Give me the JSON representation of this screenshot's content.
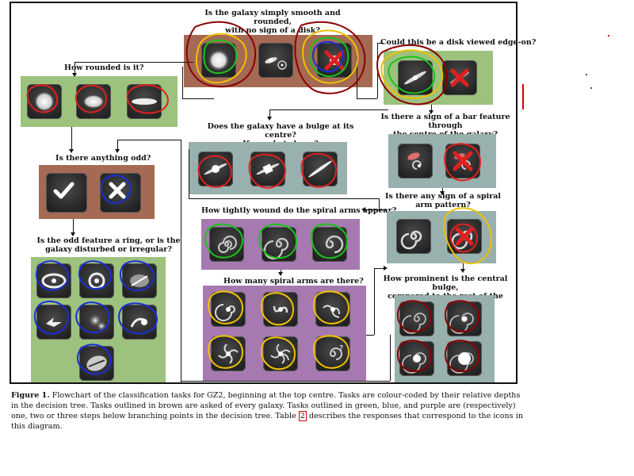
{
  "questions": {
    "smooth": "Is the galaxy simply smooth and rounded,\nwith no sign of a disk?",
    "edge_on": "Could this be a disk viewed edge-on?",
    "rounded": "How rounded is it?",
    "bulge_shape": "Does the galaxy have a bulge at its centre?\nIf so, what shape?",
    "bar": "Is there a sign of a bar feature through\nthe centre of the galaxy?",
    "odd": "Is there anything odd?",
    "spiral": "Is there any sign of a spiral\narm pattern?",
    "wound": "How tightly wound do the spiral arms appear?",
    "odd_feature": "Is the odd feature a ring, or is the\ngalaxy disturbed or irregular?",
    "arms": "How many spiral arms are there?",
    "bulge_prominence": "How prominent is the central bulge,\ncompared to the rest of the galaxy?"
  },
  "caption": {
    "label": "Figure 1.",
    "text_before_ref": " Flowchart of the classification tasks for GZ2, beginning at the top centre. Tasks are colour-coded by their relative depths in the decision tree. Tasks outlined in brown are asked of every galaxy. Tasks outlined in green, blue, and purple are (respectively) one, two or three steps below branching points in the decision tree. Table ",
    "ref": "2",
    "text_after_ref": " describes the responses that correspond to the icons in this diagram."
  },
  "colors": {
    "depth_0_brown": "#a46a54",
    "depth_1_green": "#9cc27e",
    "depth_2_blue": "#98b0ae",
    "depth_3_purple": "#a67ab0",
    "annotation_red": "#c00000",
    "annotation_green": "#19c319",
    "annotation_blue": "#1a2fd6",
    "annotation_yellow": "#f0c000",
    "annotation_darkred": "#8b0000"
  },
  "icons": {
    "smooth": [
      "smooth-galaxy-icon",
      "features-disk-icon",
      "star-artifact-icon"
    ],
    "edge_on": [
      "edge-on-yes-icon",
      "edge-on-no-icon"
    ],
    "rounded": [
      "completely-round-icon",
      "in-between-icon",
      "cigar-shaped-icon"
    ],
    "bulge_shape": [
      "rounded-bulge-icon",
      "boxy-bulge-icon",
      "no-bulge-icon"
    ],
    "bar": [
      "bar-icon",
      "no-bar-icon"
    ],
    "odd": [
      "yes-check-icon",
      "no-cross-icon"
    ],
    "spiral": [
      "spiral-icon",
      "no-spiral-icon"
    ],
    "wound": [
      "tight-spiral-icon",
      "medium-spiral-icon",
      "loose-spiral-icon"
    ],
    "odd_feature": [
      "ring-icon",
      "lens-icon",
      "disturbed-icon",
      "irregular-icon",
      "other-icon",
      "merger-icon",
      "dust-lane-icon"
    ],
    "arms": [
      "one-arm-icon",
      "two-arms-icon",
      "three-arms-icon",
      "four-arms-icon",
      "more-than-four-icon",
      "cant-tell-icon"
    ],
    "bulge_prominence": [
      "no-bulge-icon",
      "just-noticeable-icon",
      "obvious-bulge-icon",
      "dominant-bulge-icon"
    ]
  }
}
